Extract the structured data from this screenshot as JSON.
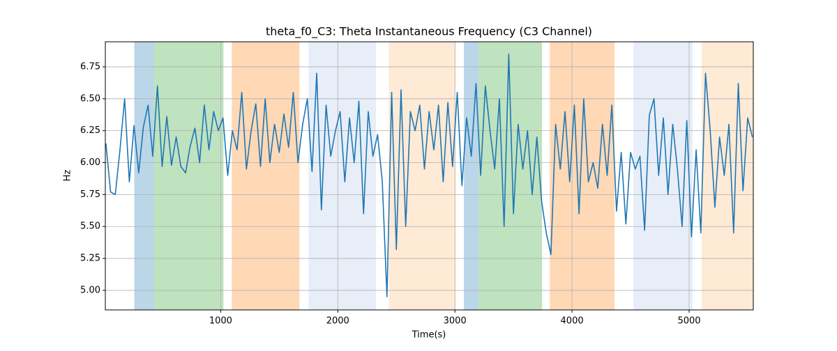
{
  "chart_data": {
    "type": "line",
    "title": "theta_f0_C3: Theta Instantaneous Frequency (C3 Channel)",
    "xlabel": "Time(s)",
    "ylabel": "Hz",
    "xlim": [
      15,
      5548
    ],
    "ylim": [
      4.847,
      6.946
    ],
    "xticks": [
      1000,
      2000,
      3000,
      4000,
      5000
    ],
    "yticks": [
      {
        "value": 5,
        "label": "5.00"
      },
      {
        "value": 5.25,
        "label": "5.25"
      },
      {
        "value": 5.5,
        "label": "5.50"
      },
      {
        "value": 5.75,
        "label": "5.75"
      },
      {
        "value": 6,
        "label": "6.00"
      },
      {
        "value": 6.25,
        "label": "6.25"
      },
      {
        "value": 6.5,
        "label": "6.50"
      },
      {
        "value": 6.75,
        "label": "6.75"
      }
    ],
    "grid": true,
    "spans": [
      {
        "start": 262,
        "end": 429,
        "color": "#1f77b44d"
      },
      {
        "start": 429,
        "end": 1024,
        "color": "#2ca02c4d"
      },
      {
        "start": 1095,
        "end": 1673,
        "color": "#ff7f0e4d"
      },
      {
        "start": 1750,
        "end": 2327,
        "color": "#aec7e84d"
      },
      {
        "start": 2435,
        "end": 3006,
        "color": "#ffbb784d"
      },
      {
        "start": 3077,
        "end": 3202,
        "color": "#1f77b44d"
      },
      {
        "start": 3202,
        "end": 3744,
        "color": "#2ca02c4d"
      },
      {
        "start": 3810,
        "end": 4363,
        "color": "#ff7f0e4d"
      },
      {
        "start": 4524,
        "end": 5030,
        "color": "#aec7e84d"
      },
      {
        "start": 5107,
        "end": 5548,
        "color": "#ffbb784d"
      }
    ],
    "x": [
      20,
      60,
      100,
      140,
      180,
      220,
      260,
      300,
      340,
      380,
      420,
      460,
      500,
      540,
      580,
      620,
      660,
      700,
      740,
      780,
      820,
      860,
      900,
      940,
      980,
      1020,
      1060,
      1100,
      1140,
      1180,
      1220,
      1260,
      1300,
      1340,
      1380,
      1420,
      1460,
      1500,
      1540,
      1580,
      1620,
      1660,
      1700,
      1740,
      1780,
      1820,
      1860,
      1900,
      1940,
      1980,
      2020,
      2060,
      2100,
      2140,
      2180,
      2220,
      2260,
      2300,
      2340,
      2380,
      2420,
      2460,
      2500,
      2540,
      2580,
      2620,
      2660,
      2700,
      2740,
      2780,
      2820,
      2860,
      2900,
      2940,
      2980,
      3020,
      3060,
      3100,
      3140,
      3180,
      3220,
      3260,
      3300,
      3340,
      3380,
      3420,
      3460,
      3500,
      3540,
      3580,
      3620,
      3660,
      3700,
      3740,
      3780,
      3820,
      3860,
      3900,
      3940,
      3980,
      4020,
      4060,
      4100,
      4140,
      4180,
      4220,
      4260,
      4300,
      4340,
      4380,
      4420,
      4460,
      4500,
      4540,
      4580,
      4620,
      4660,
      4700,
      4740,
      4780,
      4820,
      4860,
      4900,
      4940,
      4980,
      5020,
      5060,
      5100,
      5140,
      5180,
      5220,
      5260,
      5300,
      5340,
      5380,
      5420,
      5460,
      5500,
      5540
    ],
    "series": [
      {
        "color": "#1f77b4",
        "values": [
          6.15,
          5.77,
          5.75,
          6.1,
          6.5,
          5.85,
          6.29,
          5.92,
          6.28,
          6.45,
          6.05,
          6.6,
          5.97,
          6.36,
          5.98,
          6.2,
          5.97,
          5.92,
          6.13,
          6.27,
          6.0,
          6.45,
          6.1,
          6.4,
          6.25,
          6.35,
          5.9,
          6.25,
          6.1,
          6.55,
          5.95,
          6.25,
          6.46,
          5.97,
          6.5,
          6.0,
          6.3,
          6.08,
          6.38,
          6.12,
          6.55,
          6.0,
          6.3,
          6.5,
          5.93,
          6.7,
          5.63,
          6.45,
          6.05,
          6.25,
          6.4,
          5.85,
          6.35,
          6.0,
          6.48,
          5.6,
          6.4,
          6.05,
          6.22,
          5.85,
          4.95,
          6.55,
          5.32,
          6.57,
          5.5,
          6.4,
          6.25,
          6.45,
          5.95,
          6.4,
          6.1,
          6.45,
          5.85,
          6.47,
          5.97,
          6.55,
          5.82,
          6.35,
          6.05,
          6.62,
          5.9,
          6.6,
          6.25,
          5.95,
          6.5,
          5.5,
          6.85,
          5.6,
          6.3,
          5.95,
          6.25,
          5.75,
          6.2,
          5.7,
          5.45,
          5.28,
          6.3,
          5.95,
          6.4,
          5.85,
          6.45,
          5.6,
          6.5,
          5.85,
          6.0,
          5.8,
          6.3,
          5.9,
          6.45,
          5.62,
          6.08,
          5.52,
          6.08,
          5.95,
          6.05,
          5.47,
          6.37,
          6.5,
          5.9,
          6.35,
          5.75,
          6.3,
          5.95,
          5.5,
          6.33,
          5.42,
          6.1,
          5.45,
          6.7,
          6.25,
          5.65,
          6.2,
          5.9,
          6.3,
          5.45,
          6.62,
          5.78,
          6.35,
          6.2
        ]
      }
    ]
  }
}
